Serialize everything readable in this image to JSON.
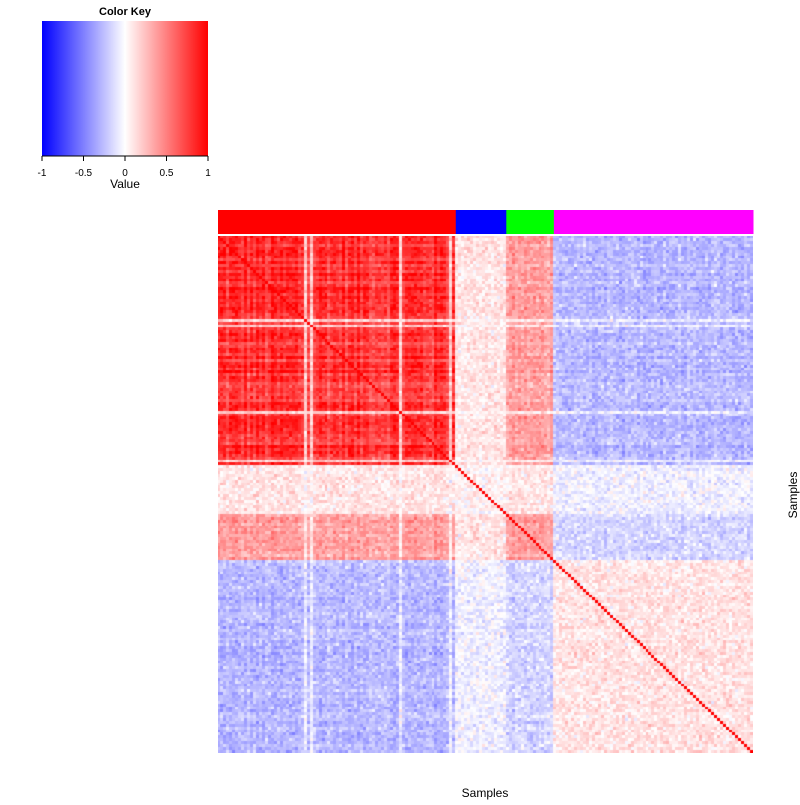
{
  "chart_data": {
    "type": "heatmap",
    "title": "",
    "xlabel": "Samples",
    "ylabel": "Samples",
    "matrix_type": "sample-sample correlation",
    "n_samples": 180,
    "value_range": [
      -1,
      1
    ],
    "diagonal_value": 1,
    "colormap": {
      "low": "#0000ff",
      "mid": "#ffffff",
      "high": "#ff0000"
    },
    "color_key": {
      "title": "Color Key",
      "xlabel": "Value",
      "ticks": [
        "-1",
        "-0.5",
        "0",
        "0.5",
        "1"
      ],
      "tick_values": [
        -1,
        -0.5,
        0,
        0.5,
        1
      ]
    },
    "groups": [
      {
        "color": "#ff0000",
        "count": 80,
        "within_mean": 0.75
      },
      {
        "color": "#0000ff",
        "count": 17,
        "within_mean": 0.05
      },
      {
        "color": "#00ff00",
        "count": 16,
        "within_mean": 0.35
      },
      {
        "color": "#ff00ff",
        "count": 67,
        "within_mean": 0.1
      }
    ],
    "between_group_means": [
      [
        0.75,
        0.1,
        0.35,
        -0.25
      ],
      [
        0.1,
        0.05,
        0.1,
        -0.05
      ],
      [
        0.35,
        0.1,
        0.35,
        -0.15
      ],
      [
        -0.25,
        -0.05,
        -0.15,
        0.1
      ]
    ]
  }
}
